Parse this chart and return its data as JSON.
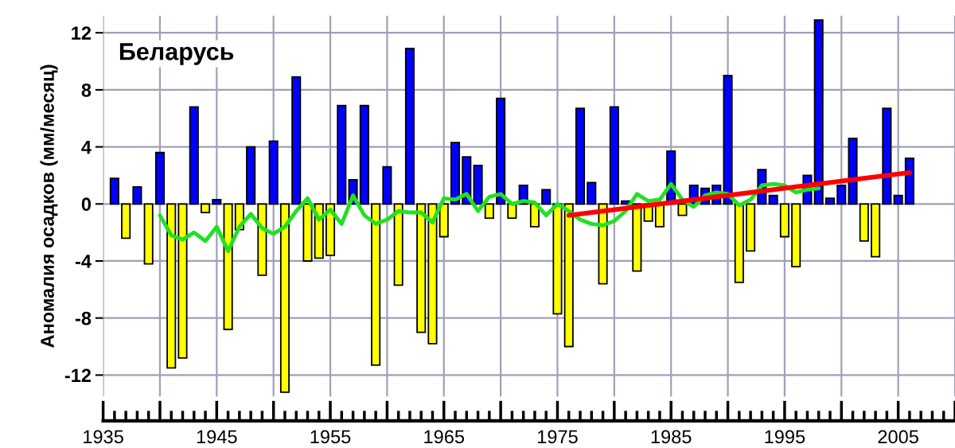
{
  "chart_data": {
    "type": "bar",
    "title": "Беларусь",
    "ylabel": "Аномалия осадков (мм/месяц)",
    "x": [
      1936,
      1937,
      1938,
      1939,
      1940,
      1941,
      1942,
      1943,
      1944,
      1945,
      1946,
      1947,
      1948,
      1949,
      1950,
      1951,
      1952,
      1953,
      1954,
      1955,
      1956,
      1957,
      1958,
      1959,
      1960,
      1961,
      1962,
      1963,
      1964,
      1965,
      1966,
      1967,
      1968,
      1969,
      1970,
      1971,
      1972,
      1973,
      1974,
      1975,
      1976,
      1977,
      1978,
      1979,
      1980,
      1981,
      1982,
      1983,
      1984,
      1985,
      1986,
      1987,
      1988,
      1989,
      1990,
      1991,
      1992,
      1993,
      1994,
      1995,
      1996,
      1997,
      1998,
      1999,
      2000,
      2001,
      2002,
      2003,
      2004,
      2005,
      2006
    ],
    "series": [
      {
        "values": [
          1.8,
          -2.4,
          1.2,
          -4.2,
          3.6,
          -11.5,
          -10.8,
          6.8,
          -0.6,
          0.3,
          -8.8,
          -1.8,
          4.0,
          -5.0,
          4.4,
          -13.2,
          8.9,
          -4.0,
          -3.8,
          -3.6,
          6.9,
          1.7,
          6.9,
          -11.3,
          2.6,
          -5.7,
          10.9,
          -9.0,
          -9.8,
          -2.3,
          4.3,
          3.3,
          2.7,
          -1.0,
          7.4,
          -1.0,
          1.3,
          -1.6,
          1.0,
          -7.7,
          -10.0,
          6.7,
          1.5,
          -5.6,
          6.8,
          0.2,
          -4.7,
          -1.2,
          -1.6,
          3.7,
          -0.8,
          1.3,
          1.1,
          1.3,
          9.0,
          -5.5,
          -3.3,
          2.4,
          0.6,
          -2.3,
          -4.4,
          2.0,
          12.9,
          0.4,
          1.3,
          4.6,
          -2.6,
          -3.7,
          6.7,
          0.6,
          3.2
        ],
        "colors": [
          "#0000ff",
          "#ffff00",
          "#0000ff",
          "#ffff00",
          "#0000ff",
          "#ffff00",
          "#ffff00",
          "#0000ff",
          "#ffff00",
          "#0000ff",
          "#ffff00",
          "#ffff00",
          "#0000ff",
          "#ffff00",
          "#0000ff",
          "#ffff00",
          "#0000ff",
          "#ffff00",
          "#ffff00",
          "#ffff00",
          "#0000ff",
          "#0000ff",
          "#0000ff",
          "#ffff00",
          "#0000ff",
          "#ffff00",
          "#0000ff",
          "#ffff00",
          "#ffff00",
          "#ffff00",
          "#0000ff",
          "#0000ff",
          "#0000ff",
          "#ffff00",
          "#0000ff",
          "#ffff00",
          "#0000ff",
          "#ffff00",
          "#0000ff",
          "#ffff00",
          "#ffff00",
          "#0000ff",
          "#0000ff",
          "#ffff00",
          "#0000ff",
          "#0000ff",
          "#ffff00",
          "#ffff00",
          "#ffff00",
          "#0000ff",
          "#ffff00",
          "#0000ff",
          "#0000ff",
          "#0000ff",
          "#0000ff",
          "#ffff00",
          "#ffff00",
          "#0000ff",
          "#0000ff",
          "#ffff00",
          "#ffff00",
          "#0000ff",
          "#0000ff",
          "#0000ff",
          "#0000ff",
          "#0000ff",
          "#ffff00",
          "#ffff00",
          "#0000ff",
          "#0000ff",
          "#0000ff"
        ]
      },
      {
        "type": "line",
        "color": "#22e022",
        "x": [
          1940,
          1941,
          1942,
          1943,
          1944,
          1945,
          1946,
          1947,
          1948,
          1949,
          1950,
          1951,
          1952,
          1953,
          1954,
          1955,
          1956,
          1957,
          1958,
          1959,
          1960,
          1961,
          1962,
          1963,
          1964,
          1965,
          1966,
          1967,
          1968,
          1969,
          1970,
          1971,
          1972,
          1973,
          1974,
          1975,
          1976,
          1977,
          1978,
          1979,
          1980,
          1981,
          1982,
          1983,
          1984,
          1985,
          1986,
          1987,
          1988,
          1989,
          1990,
          1991,
          1992,
          1993,
          1994,
          1995,
          1996,
          1997,
          1998
        ],
        "values": [
          -0.8,
          -2.2,
          -2.5,
          -2.0,
          -2.6,
          -1.6,
          -3.3,
          -1.6,
          -0.7,
          -1.7,
          -2.1,
          -1.6,
          -0.5,
          0.4,
          -1.1,
          -0.4,
          -1.4,
          0.6,
          -0.8,
          -1.4,
          -1.1,
          -0.5,
          -0.6,
          -0.6,
          -1.3,
          0.4,
          0.3,
          0.7,
          -0.5,
          0.5,
          0.7,
          0.0,
          0.2,
          0.1,
          -0.8,
          0.0,
          -0.5,
          -1.1,
          -1.4,
          -1.5,
          -1.2,
          -0.5,
          0.7,
          0.2,
          0.3,
          1.4,
          0.3,
          -0.2,
          0.6,
          0.8,
          0.7,
          -0.1,
          0.3,
          1.3,
          1.4,
          1.3,
          0.8,
          1.0,
          1.1
        ]
      },
      {
        "type": "line",
        "color": "#ff0000",
        "x": [
          1976,
          2006
        ],
        "values": [
          -0.8,
          2.2
        ]
      }
    ],
    "xlim": [
      1935,
      2010
    ],
    "xticks": [
      1935,
      {
        "value": 1940,
        "label": null
      },
      1945,
      {
        "value": 1950,
        "label": null
      },
      1955,
      {
        "value": 1960,
        "label": null
      },
      1965,
      {
        "value": 1970,
        "label": null
      },
      1975,
      {
        "value": 1980,
        "label": null
      },
      1985,
      {
        "value": 1990,
        "label": null
      },
      1995,
      {
        "value": 2000,
        "label": null
      },
      2005,
      {
        "value": 2010,
        "label": null
      }
    ],
    "ylim": [
      -13.5,
      13.2
    ],
    "yticks": [
      -12,
      -8,
      -4,
      0,
      4,
      8,
      12
    ],
    "grid": true
  }
}
